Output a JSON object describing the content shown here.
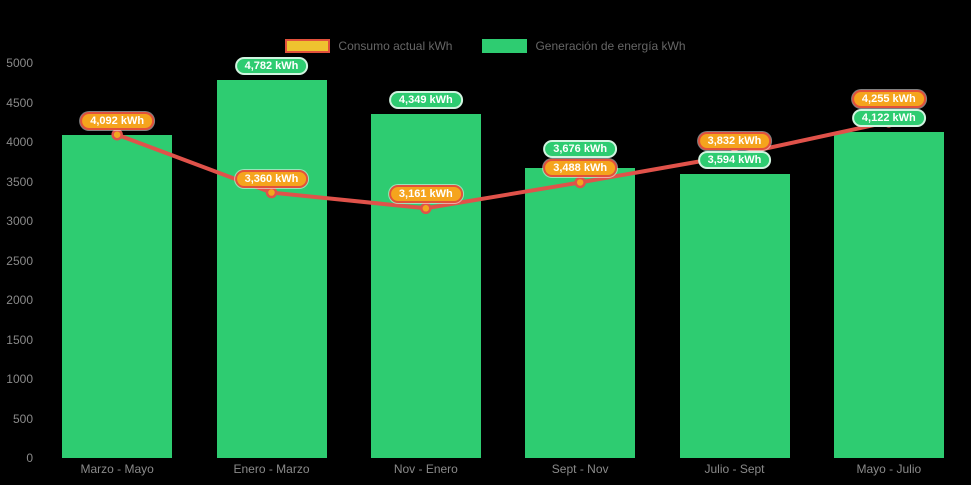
{
  "colors": {
    "background": "#000000",
    "bar_green": "#2ECC71",
    "line_red": "#E0524A",
    "marker_fill": "#F2A71E",
    "pill_orange_bg": "#F5A41D",
    "pill_orange_border": "#E2513B",
    "pill_text": "#FFFFFF",
    "legend_consumo_fill": "#EFC32F",
    "axis_text": "#8A8A8A",
    "legend_text": "#666666"
  },
  "legend": {
    "position": "top-center",
    "items": [
      {
        "label": "Consumo actual kWh",
        "series": "line"
      },
      {
        "label": "Generación de energía kWh",
        "series": "bar"
      }
    ]
  },
  "chart_data": {
    "type": "bar",
    "subtype": "bar+line combo",
    "title": "",
    "categories": [
      "Marzo - Mayo",
      "Enero - Marzo",
      "Nov - Enero",
      "Sept - Nov",
      "Julio - Sept",
      "Mayo - Julio"
    ],
    "series": [
      {
        "name": "Consumo actual kWh",
        "type": "line",
        "values": [
          4092,
          3360,
          3161,
          3488,
          3832,
          4255
        ],
        "labels": [
          "4,092 kWh",
          "3,360 kWh",
          "3,161 kWh",
          "3,488 kWh",
          "3,832 kWh",
          "4,255 kWh"
        ],
        "label_visible": [
          true,
          true,
          true,
          true,
          true,
          true
        ]
      },
      {
        "name": "Generación de energía kWh",
        "type": "bar",
        "values": [
          4092,
          4782,
          4349,
          3676,
          3594,
          4122
        ],
        "labels": [
          "",
          "4,782 kWh",
          "4,349 kWh",
          "3,676 kWh",
          "3,594 kWh",
          "4,122 kWh"
        ],
        "label_visible": [
          false,
          true,
          true,
          true,
          true,
          true
        ]
      }
    ],
    "y_axis": {
      "min": 0,
      "max": 5000,
      "step": 500,
      "tick_labels": [
        "0",
        "500",
        "1000",
        "1500",
        "2000",
        "2500",
        "3000",
        "3500",
        "4000",
        "4500",
        "5000"
      ]
    },
    "x_axis": {
      "label": ""
    },
    "grid": false,
    "legend_position": "top-center"
  }
}
